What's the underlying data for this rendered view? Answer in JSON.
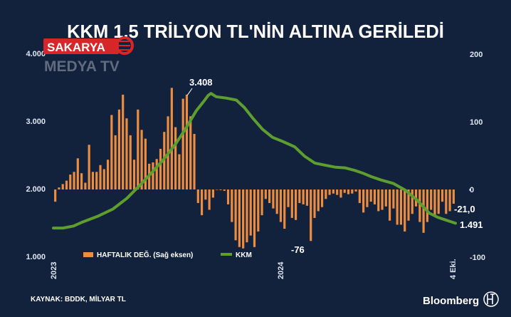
{
  "colors": {
    "background": "#13223c",
    "bar": "#ee8c3f",
    "line": "#5e9e2f",
    "text": "#ffffff",
    "logo_red": "#d6262a"
  },
  "logo": {
    "line1": "SAKARYA",
    "line2": "MEDYA TV"
  },
  "footer": {
    "source": "KAYNAK: BDDK, MİLYAR TL",
    "brand": "Bloomberg"
  },
  "chart_data": {
    "type": "bar+line",
    "title": "KKM 1.5 TRİLYON TL'NİN ALTINA GERİLEDİ",
    "left_axis": {
      "min": 1000,
      "max": 4000,
      "ticks": [
        "1.000",
        "2.000",
        "3.000",
        "4.000"
      ]
    },
    "right_axis": {
      "min": -100,
      "max": 200,
      "ticks": [
        "-100",
        "0",
        "100",
        "200"
      ]
    },
    "x_labels": [
      "2023",
      "2024",
      "4 Eki."
    ],
    "legend": [
      "HAFTALIK DEĞ. (Sağ eksen)",
      "KKM"
    ],
    "annotations": [
      "3.408",
      "-76",
      "-21,0",
      "1.491"
    ],
    "series": [
      {
        "name": "HAFTALIK DEĞ. (Sağ eksen)",
        "axis": "right",
        "type": "bar",
        "values": [
          -18,
          3,
          8,
          13,
          22,
          26,
          46,
          24,
          10,
          66,
          26,
          26,
          36,
          30,
          44,
          110,
          80,
          118,
          140,
          105,
          80,
          44,
          118,
          88,
          75,
          38,
          40,
          45,
          60,
          85,
          108,
          150,
          92,
          52,
          134,
          140,
          108,
          82,
          -20,
          -38,
          -15,
          -30,
          -12,
          0,
          -1,
          -2,
          -22,
          -48,
          -75,
          -85,
          -87,
          -78,
          -68,
          -85,
          -62,
          -38,
          -14,
          -20,
          -28,
          -36,
          -48,
          -58,
          -26,
          -42,
          -45,
          -20,
          -22,
          -24,
          -76,
          -42,
          -32,
          -26,
          -14,
          -8,
          -6,
          -8,
          -12,
          -5,
          -7,
          -6,
          -3,
          -20,
          -34,
          -26,
          -18,
          -22,
          -32,
          -30,
          -25,
          -46,
          -28,
          -52,
          -52,
          -62,
          -46,
          -36,
          -25,
          -48,
          -64,
          -48,
          -30,
          -38,
          -36,
          -18,
          -36,
          -32,
          -21
        ]
      },
      {
        "name": "KKM",
        "axis": "left",
        "type": "line",
        "points": [
          [
            0,
            1420
          ],
          [
            0.024,
            1420
          ],
          [
            0.05,
            1450
          ],
          [
            0.073,
            1510
          ],
          [
            0.109,
            1590
          ],
          [
            0.148,
            1700
          ],
          [
            0.183,
            1860
          ],
          [
            0.21,
            2020
          ],
          [
            0.242,
            2220
          ],
          [
            0.275,
            2440
          ],
          [
            0.305,
            2670
          ],
          [
            0.33,
            2900
          ],
          [
            0.355,
            3150
          ],
          [
            0.375,
            3300
          ],
          [
            0.385,
            3380
          ],
          [
            0.392,
            3408
          ],
          [
            0.405,
            3360
          ],
          [
            0.43,
            3340
          ],
          [
            0.455,
            3310
          ],
          [
            0.475,
            3200
          ],
          [
            0.495,
            3050
          ],
          [
            0.52,
            2880
          ],
          [
            0.545,
            2760
          ],
          [
            0.57,
            2700
          ],
          [
            0.6,
            2620
          ],
          [
            0.625,
            2480
          ],
          [
            0.65,
            2380
          ],
          [
            0.675,
            2350
          ],
          [
            0.7,
            2320
          ],
          [
            0.725,
            2310
          ],
          [
            0.75,
            2270
          ],
          [
            0.77,
            2230
          ],
          [
            0.79,
            2180
          ],
          [
            0.815,
            2130
          ],
          [
            0.845,
            2080
          ],
          [
            0.875,
            1980
          ],
          [
            0.905,
            1830
          ],
          [
            0.935,
            1640
          ],
          [
            0.955,
            1580
          ],
          [
            0.975,
            1540
          ],
          [
            1.0,
            1491
          ]
        ]
      }
    ]
  }
}
